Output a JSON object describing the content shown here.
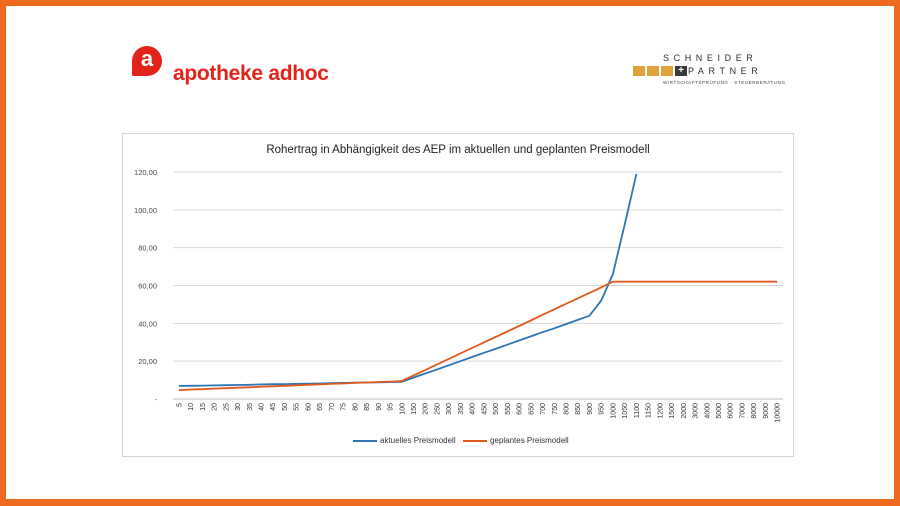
{
  "logos": {
    "left_mark": "a",
    "left_brand": "apotheke adhoc",
    "right_line1": "SCHNEIDER",
    "right_line2": "PARTNER",
    "right_plus": "+",
    "right_tagline": "WIRTSCHAFTSPRÜFUNG · STEUERBERATUNG"
  },
  "colors": {
    "frame": "#ee6a1f",
    "brand_red": "#e2231a",
    "series_current": "#2e75b6",
    "series_planned": "#e05a1d"
  },
  "chart_data": {
    "type": "line",
    "title": "Rohertrag in Abhängigkeit des AEP  im aktuellen und geplanten Preismodell",
    "xlabel": "",
    "ylabel": "",
    "ylim": [
      0,
      120
    ],
    "yticks": [
      "-",
      "20,00",
      "40,00",
      "60,00",
      "80,00",
      "100,00",
      "120,00"
    ],
    "grid": "horizontal",
    "legend_position": "bottom",
    "categories": [
      "5",
      "10",
      "15",
      "20",
      "25",
      "30",
      "35",
      "40",
      "45",
      "50",
      "55",
      "60",
      "65",
      "70",
      "75",
      "80",
      "85",
      "90",
      "95",
      "100",
      "150",
      "200",
      "250",
      "300",
      "350",
      "400",
      "450",
      "500",
      "550",
      "600",
      "650",
      "700",
      "750",
      "800",
      "850",
      "900",
      "950",
      "1000",
      "1050",
      "1100",
      "1150",
      "1200",
      "1500",
      "2000",
      "3000",
      "4000",
      "5000",
      "6000",
      "7000",
      "8000",
      "9000",
      "10000"
    ],
    "series": [
      {
        "name": "aktuelles Preismodell",
        "values": [
          6.9,
          7.0,
          7.1,
          7.2,
          7.3,
          7.4,
          7.5,
          7.7,
          7.8,
          7.9,
          8.0,
          8.1,
          8.2,
          8.4,
          8.5,
          8.6,
          8.7,
          8.8,
          9.0,
          9.1,
          11.3,
          13.5,
          15.6,
          17.8,
          20.0,
          22.2,
          24.4,
          26.5,
          28.7,
          30.9,
          33.1,
          35.3,
          37.4,
          39.6,
          41.8,
          44.0,
          52.0,
          66.0,
          92.0,
          119.0,
          null,
          null,
          null,
          null,
          null,
          null,
          null,
          null,
          null,
          null,
          null,
          null
        ]
      },
      {
        "name": "geplantes Preismodell",
        "values": [
          4.7,
          5.0,
          5.2,
          5.5,
          5.7,
          6.0,
          6.2,
          6.5,
          6.7,
          7.0,
          7.2,
          7.5,
          7.7,
          8.0,
          8.2,
          8.5,
          8.7,
          9.0,
          9.2,
          9.5,
          12.4,
          15.3,
          18.2,
          21.2,
          24.1,
          27.0,
          29.9,
          32.8,
          35.7,
          38.6,
          41.5,
          44.5,
          47.4,
          50.3,
          53.2,
          56.1,
          59.0,
          62.0,
          62.0,
          62.0,
          62.0,
          62.0,
          62.0,
          62.0,
          62.0,
          62.0,
          62.0,
          62.0,
          62.0,
          62.0,
          62.0,
          62.0
        ]
      }
    ]
  }
}
